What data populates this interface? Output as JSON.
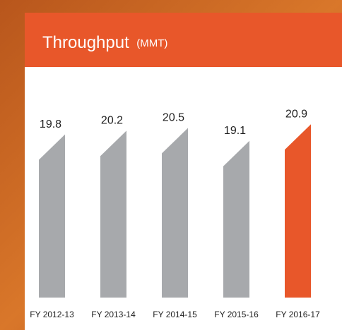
{
  "chart_data": {
    "type": "bar",
    "title": "Throughput",
    "subtitle": "(MMT)",
    "categories": [
      "FY 2012-13",
      "FY 2013-14",
      "FY 2014-15",
      "FY 2015-16",
      "FY 2016-17"
    ],
    "values": [
      19.8,
      20.2,
      20.5,
      19.1,
      20.9
    ],
    "colors": [
      "#a7a9ac",
      "#a7a9ac",
      "#a7a9ac",
      "#a7a9ac",
      "#e8572a"
    ],
    "ylim": [
      2,
      24
    ]
  }
}
